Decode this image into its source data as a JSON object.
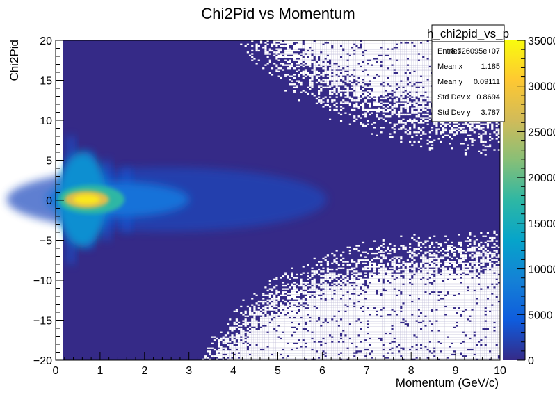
{
  "chart_data": {
    "type": "heatmap",
    "title": "Chi2Pid vs Momentum",
    "xlabel": "Momentum (GeV/c)",
    "ylabel": "Chi2Pid",
    "xlim": [
      0,
      10
    ],
    "ylim": [
      -20,
      20
    ],
    "zlim": [
      0,
      35000
    ],
    "x_ticks": [
      "0",
      "1",
      "2",
      "3",
      "4",
      "5",
      "6",
      "7",
      "8",
      "9",
      "10"
    ],
    "y_ticks": [
      "−20",
      "−15",
      "−10",
      "−5",
      "0",
      "5",
      "10",
      "15",
      "20"
    ],
    "z_ticks": [
      "0",
      "5000",
      "10000",
      "15000",
      "20000",
      "25000",
      "30000",
      "35000"
    ],
    "colormap": "kBird (blue-cyan-green-yellow)",
    "grid": false,
    "peak": {
      "x": 0.7,
      "y": 0.1
    },
    "band_mean_y": 0.09,
    "band_sigma_y": 3.79,
    "stats_box": {
      "title": "h_chi2pid_vs_p",
      "rows": [
        {
          "label": "Entries",
          "value": "8.726095e+07"
        },
        {
          "label": "Mean x",
          "value": "1.185"
        },
        {
          "label": "Mean y",
          "value": "0.09111"
        },
        {
          "label": "Std Dev x",
          "value": "0.8694"
        },
        {
          "label": "Std Dev y",
          "value": "3.787"
        }
      ]
    }
  },
  "colors": {
    "background_bin": "#352a87",
    "palette": [
      "#352a87",
      "#0f5cdd",
      "#1481d6",
      "#06a4ca",
      "#2eb7a4",
      "#87bf77",
      "#d1bb59",
      "#fec832",
      "#f9fb0e"
    ]
  }
}
